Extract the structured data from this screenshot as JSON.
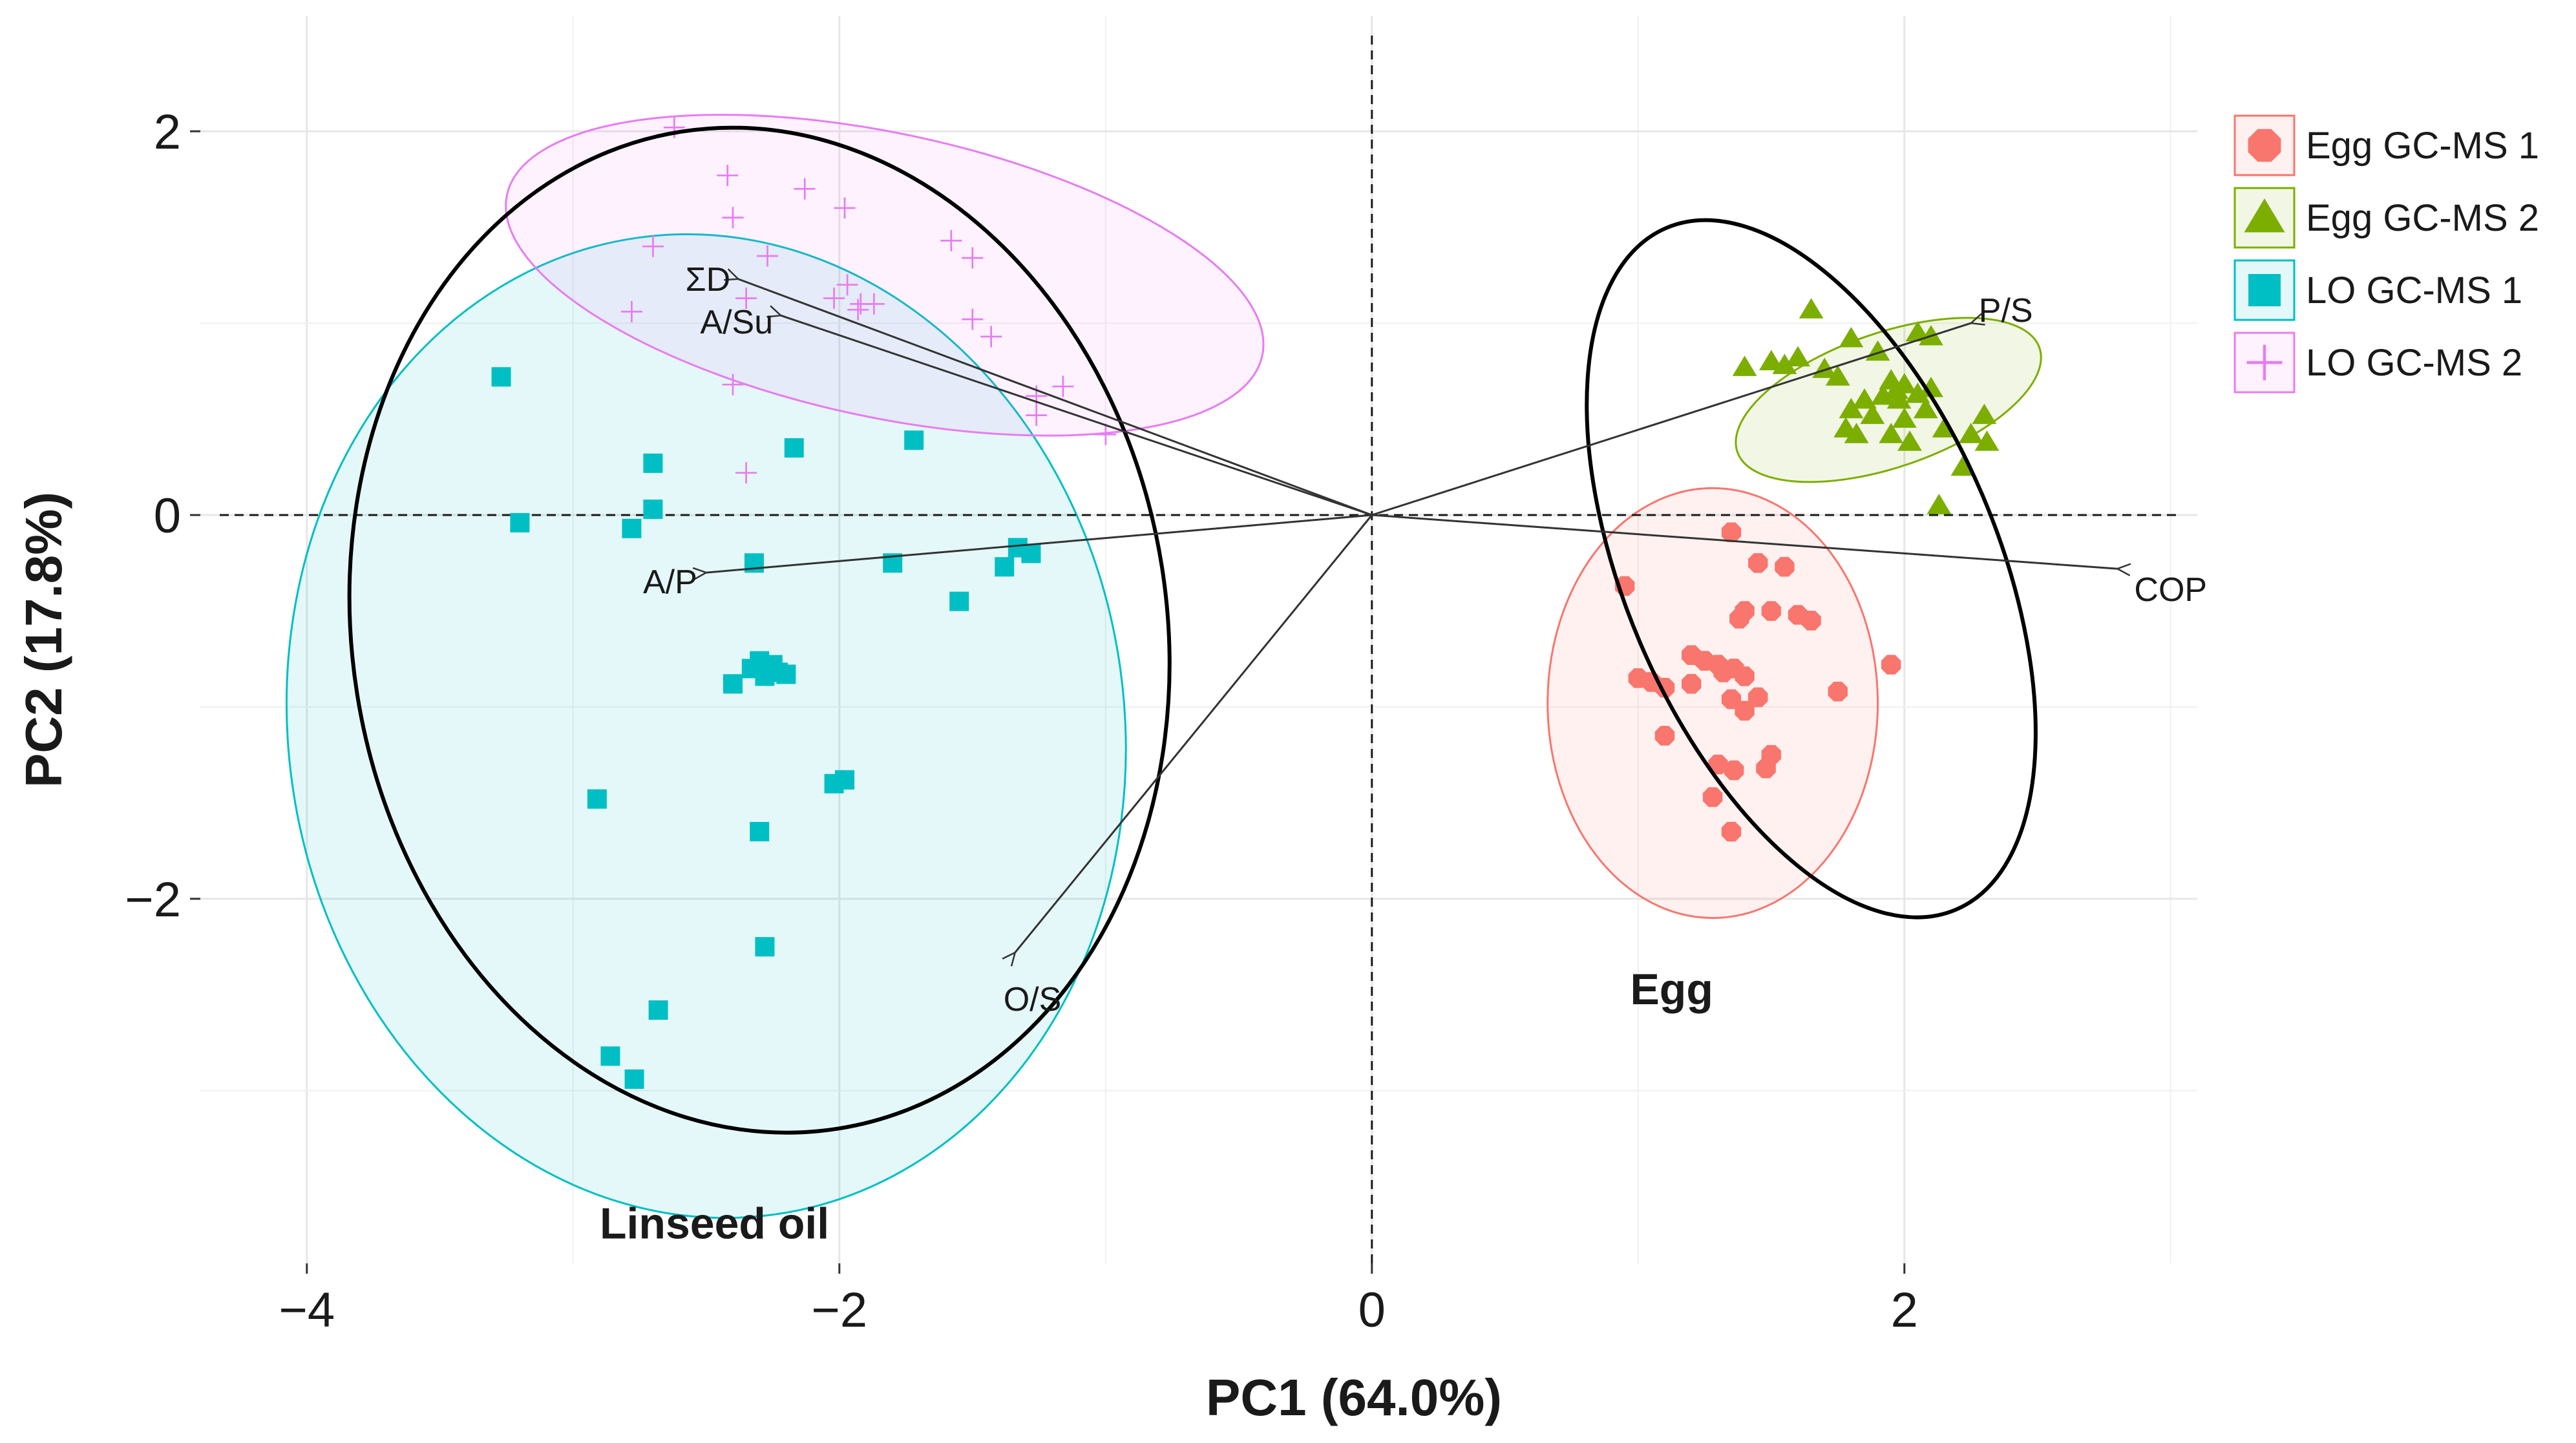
{
  "chart_data": {
    "type": "scatter",
    "xlabel": "PC1 (64.0%)",
    "ylabel": "PC2 (17.8%)",
    "xlim": [
      -4.4,
      3.1
    ],
    "ylim": [
      -3.9,
      2.6
    ],
    "x_ticks": [
      -4,
      -2,
      0,
      2
    ],
    "x_tick_labels": [
      "−4",
      "−2",
      "0",
      "2"
    ],
    "y_ticks": [
      -2,
      0,
      2
    ],
    "y_tick_labels": [
      "−2",
      "0",
      "2"
    ],
    "grid": true,
    "reference_lines": {
      "x": 0,
      "y": 0,
      "style": "dashed"
    },
    "legend_position": "right",
    "series": [
      {
        "name": "Egg GC-MS 1",
        "color": "#F8766D",
        "marker": "octagon",
        "points": [
          [
            1.35,
            -0.09
          ],
          [
            1.45,
            -0.25
          ],
          [
            1.55,
            -0.27
          ],
          [
            0.95,
            -0.37
          ],
          [
            1.4,
            -0.5
          ],
          [
            1.5,
            -0.5
          ],
          [
            1.6,
            -0.52
          ],
          [
            1.65,
            -0.55
          ],
          [
            1.38,
            -0.54
          ],
          [
            1.2,
            -0.73
          ],
          [
            1.25,
            -0.76
          ],
          [
            1.32,
            -0.82
          ],
          [
            1.3,
            -0.78
          ],
          [
            1.36,
            -0.8
          ],
          [
            1.4,
            -0.84
          ],
          [
            1.0,
            -0.85
          ],
          [
            1.05,
            -0.87
          ],
          [
            1.1,
            -0.9
          ],
          [
            1.2,
            -0.88
          ],
          [
            1.35,
            -0.96
          ],
          [
            1.4,
            -1.02
          ],
          [
            1.45,
            -0.95
          ],
          [
            1.75,
            -0.92
          ],
          [
            1.95,
            -0.78
          ],
          [
            1.1,
            -1.15
          ],
          [
            1.3,
            -1.3
          ],
          [
            1.36,
            -1.33
          ],
          [
            1.5,
            -1.25
          ],
          [
            1.48,
            -1.32
          ],
          [
            1.28,
            -1.47
          ],
          [
            1.35,
            -1.65
          ]
        ],
        "ellipse": {
          "cx": 1.28,
          "cy": -0.98,
          "rx": 0.62,
          "ry": 1.12,
          "angle_deg": 0
        }
      },
      {
        "name": "Egg GC-MS 2",
        "color": "#7CAE00",
        "marker": "triangle",
        "points": [
          [
            1.65,
            1.07
          ],
          [
            1.8,
            0.92
          ],
          [
            2.05,
            0.95
          ],
          [
            2.1,
            0.93
          ],
          [
            1.5,
            0.8
          ],
          [
            1.55,
            0.78
          ],
          [
            1.6,
            0.82
          ],
          [
            1.7,
            0.76
          ],
          [
            1.75,
            0.72
          ],
          [
            1.9,
            0.85
          ],
          [
            1.95,
            0.7
          ],
          [
            2.0,
            0.68
          ],
          [
            1.97,
            0.65
          ],
          [
            1.92,
            0.62
          ],
          [
            1.98,
            0.6
          ],
          [
            2.05,
            0.63
          ],
          [
            2.1,
            0.66
          ],
          [
            1.85,
            0.6
          ],
          [
            1.8,
            0.55
          ],
          [
            1.88,
            0.52
          ],
          [
            2.0,
            0.5
          ],
          [
            2.08,
            0.55
          ],
          [
            1.78,
            0.45
          ],
          [
            1.82,
            0.42
          ],
          [
            1.95,
            0.42
          ],
          [
            2.02,
            0.38
          ],
          [
            2.15,
            0.45
          ],
          [
            2.25,
            0.42
          ],
          [
            2.3,
            0.52
          ],
          [
            2.31,
            0.38
          ],
          [
            2.22,
            0.25
          ],
          [
            1.4,
            0.77
          ],
          [
            2.13,
            0.05
          ]
        ],
        "ellipse": {
          "cx": 1.94,
          "cy": 0.6,
          "rx": 0.6,
          "ry": 0.35,
          "angle_deg": 19
        }
      },
      {
        "name": "LO GC-MS 1",
        "color": "#00BFC4",
        "marker": "square",
        "points": [
          [
            -3.27,
            0.72
          ],
          [
            -3.2,
            -0.04
          ],
          [
            -2.7,
            0.27
          ],
          [
            -2.78,
            -0.07
          ],
          [
            -2.7,
            0.03
          ],
          [
            -2.17,
            0.35
          ],
          [
            -1.72,
            0.39
          ],
          [
            -2.32,
            -0.25
          ],
          [
            -1.8,
            -0.25
          ],
          [
            -1.38,
            -0.27
          ],
          [
            -1.33,
            -0.17
          ],
          [
            -1.28,
            -0.2
          ],
          [
            -1.55,
            -0.45
          ],
          [
            -2.3,
            -0.76
          ],
          [
            -2.25,
            -0.78
          ],
          [
            -2.33,
            -0.8
          ],
          [
            -2.23,
            -0.82
          ],
          [
            -2.2,
            -0.83
          ],
          [
            -2.28,
            -0.84
          ],
          [
            -2.4,
            -0.88
          ],
          [
            -2.02,
            -1.4
          ],
          [
            -1.98,
            -1.38
          ],
          [
            -2.91,
            -1.48
          ],
          [
            -2.3,
            -1.65
          ],
          [
            -2.28,
            -2.25
          ],
          [
            -2.68,
            -2.58
          ],
          [
            -2.86,
            -2.82
          ],
          [
            -2.77,
            -2.94
          ]
        ],
        "ellipse": {
          "cx": -2.5,
          "cy": -1.1,
          "rx": 1.57,
          "ry": 2.57,
          "angle_deg": 8
        }
      },
      {
        "name": "LO GC-MS 2",
        "color": "#E77CF2",
        "marker": "plus",
        "points": [
          [
            -2.62,
            2.02
          ],
          [
            -2.42,
            1.77
          ],
          [
            -2.4,
            1.55
          ],
          [
            -2.13,
            1.7
          ],
          [
            -1.98,
            1.6
          ],
          [
            -2.7,
            1.4
          ],
          [
            -2.27,
            1.35
          ],
          [
            -2.02,
            1.13
          ],
          [
            -1.92,
            1.1
          ],
          [
            -1.97,
            1.2
          ],
          [
            -1.87,
            1.1
          ],
          [
            -1.93,
            1.07
          ],
          [
            -1.58,
            1.43
          ],
          [
            -1.5,
            1.34
          ],
          [
            -2.78,
            1.06
          ],
          [
            -2.35,
            1.13
          ],
          [
            -1.5,
            1.02
          ],
          [
            -1.43,
            0.93
          ],
          [
            -2.4,
            0.68
          ],
          [
            -1.26,
            0.62
          ],
          [
            -1.26,
            0.52
          ],
          [
            -1.16,
            0.67
          ],
          [
            -1.0,
            0.42
          ],
          [
            -2.35,
            0.22
          ]
        ],
        "ellipse": {
          "cx": -1.83,
          "cy": 1.25,
          "rx": 1.45,
          "ry": 0.74,
          "angle_deg": -12
        }
      }
    ],
    "group_ellipses": [
      {
        "label": "Linseed oil",
        "cx": -2.3,
        "cy": -0.6,
        "rx": 1.53,
        "ry": 2.63,
        "angle_deg": 9
      },
      {
        "label": "Egg",
        "cx": 1.65,
        "cy": -0.28,
        "rx": 0.7,
        "ry": 1.93,
        "angle_deg": 23
      }
    ],
    "loadings": [
      {
        "label": "ΣD",
        "x": -2.38,
        "y": 1.23
      },
      {
        "label": "A/Su",
        "x": -2.22,
        "y": 1.04
      },
      {
        "label": "A/P",
        "x": -2.5,
        "y": -0.3
      },
      {
        "label": "O/S",
        "x": -1.34,
        "y": -2.28
      },
      {
        "label": "P/S",
        "x": 2.25,
        "y": 1.0
      },
      {
        "label": "COP",
        "x": 2.8,
        "y": -0.28
      }
    ],
    "annotations": [
      {
        "text": "Linseed oil",
        "x": -2.9,
        "y": -3.77
      },
      {
        "text": "Egg",
        "x": 0.97,
        "y": -2.55
      }
    ]
  }
}
